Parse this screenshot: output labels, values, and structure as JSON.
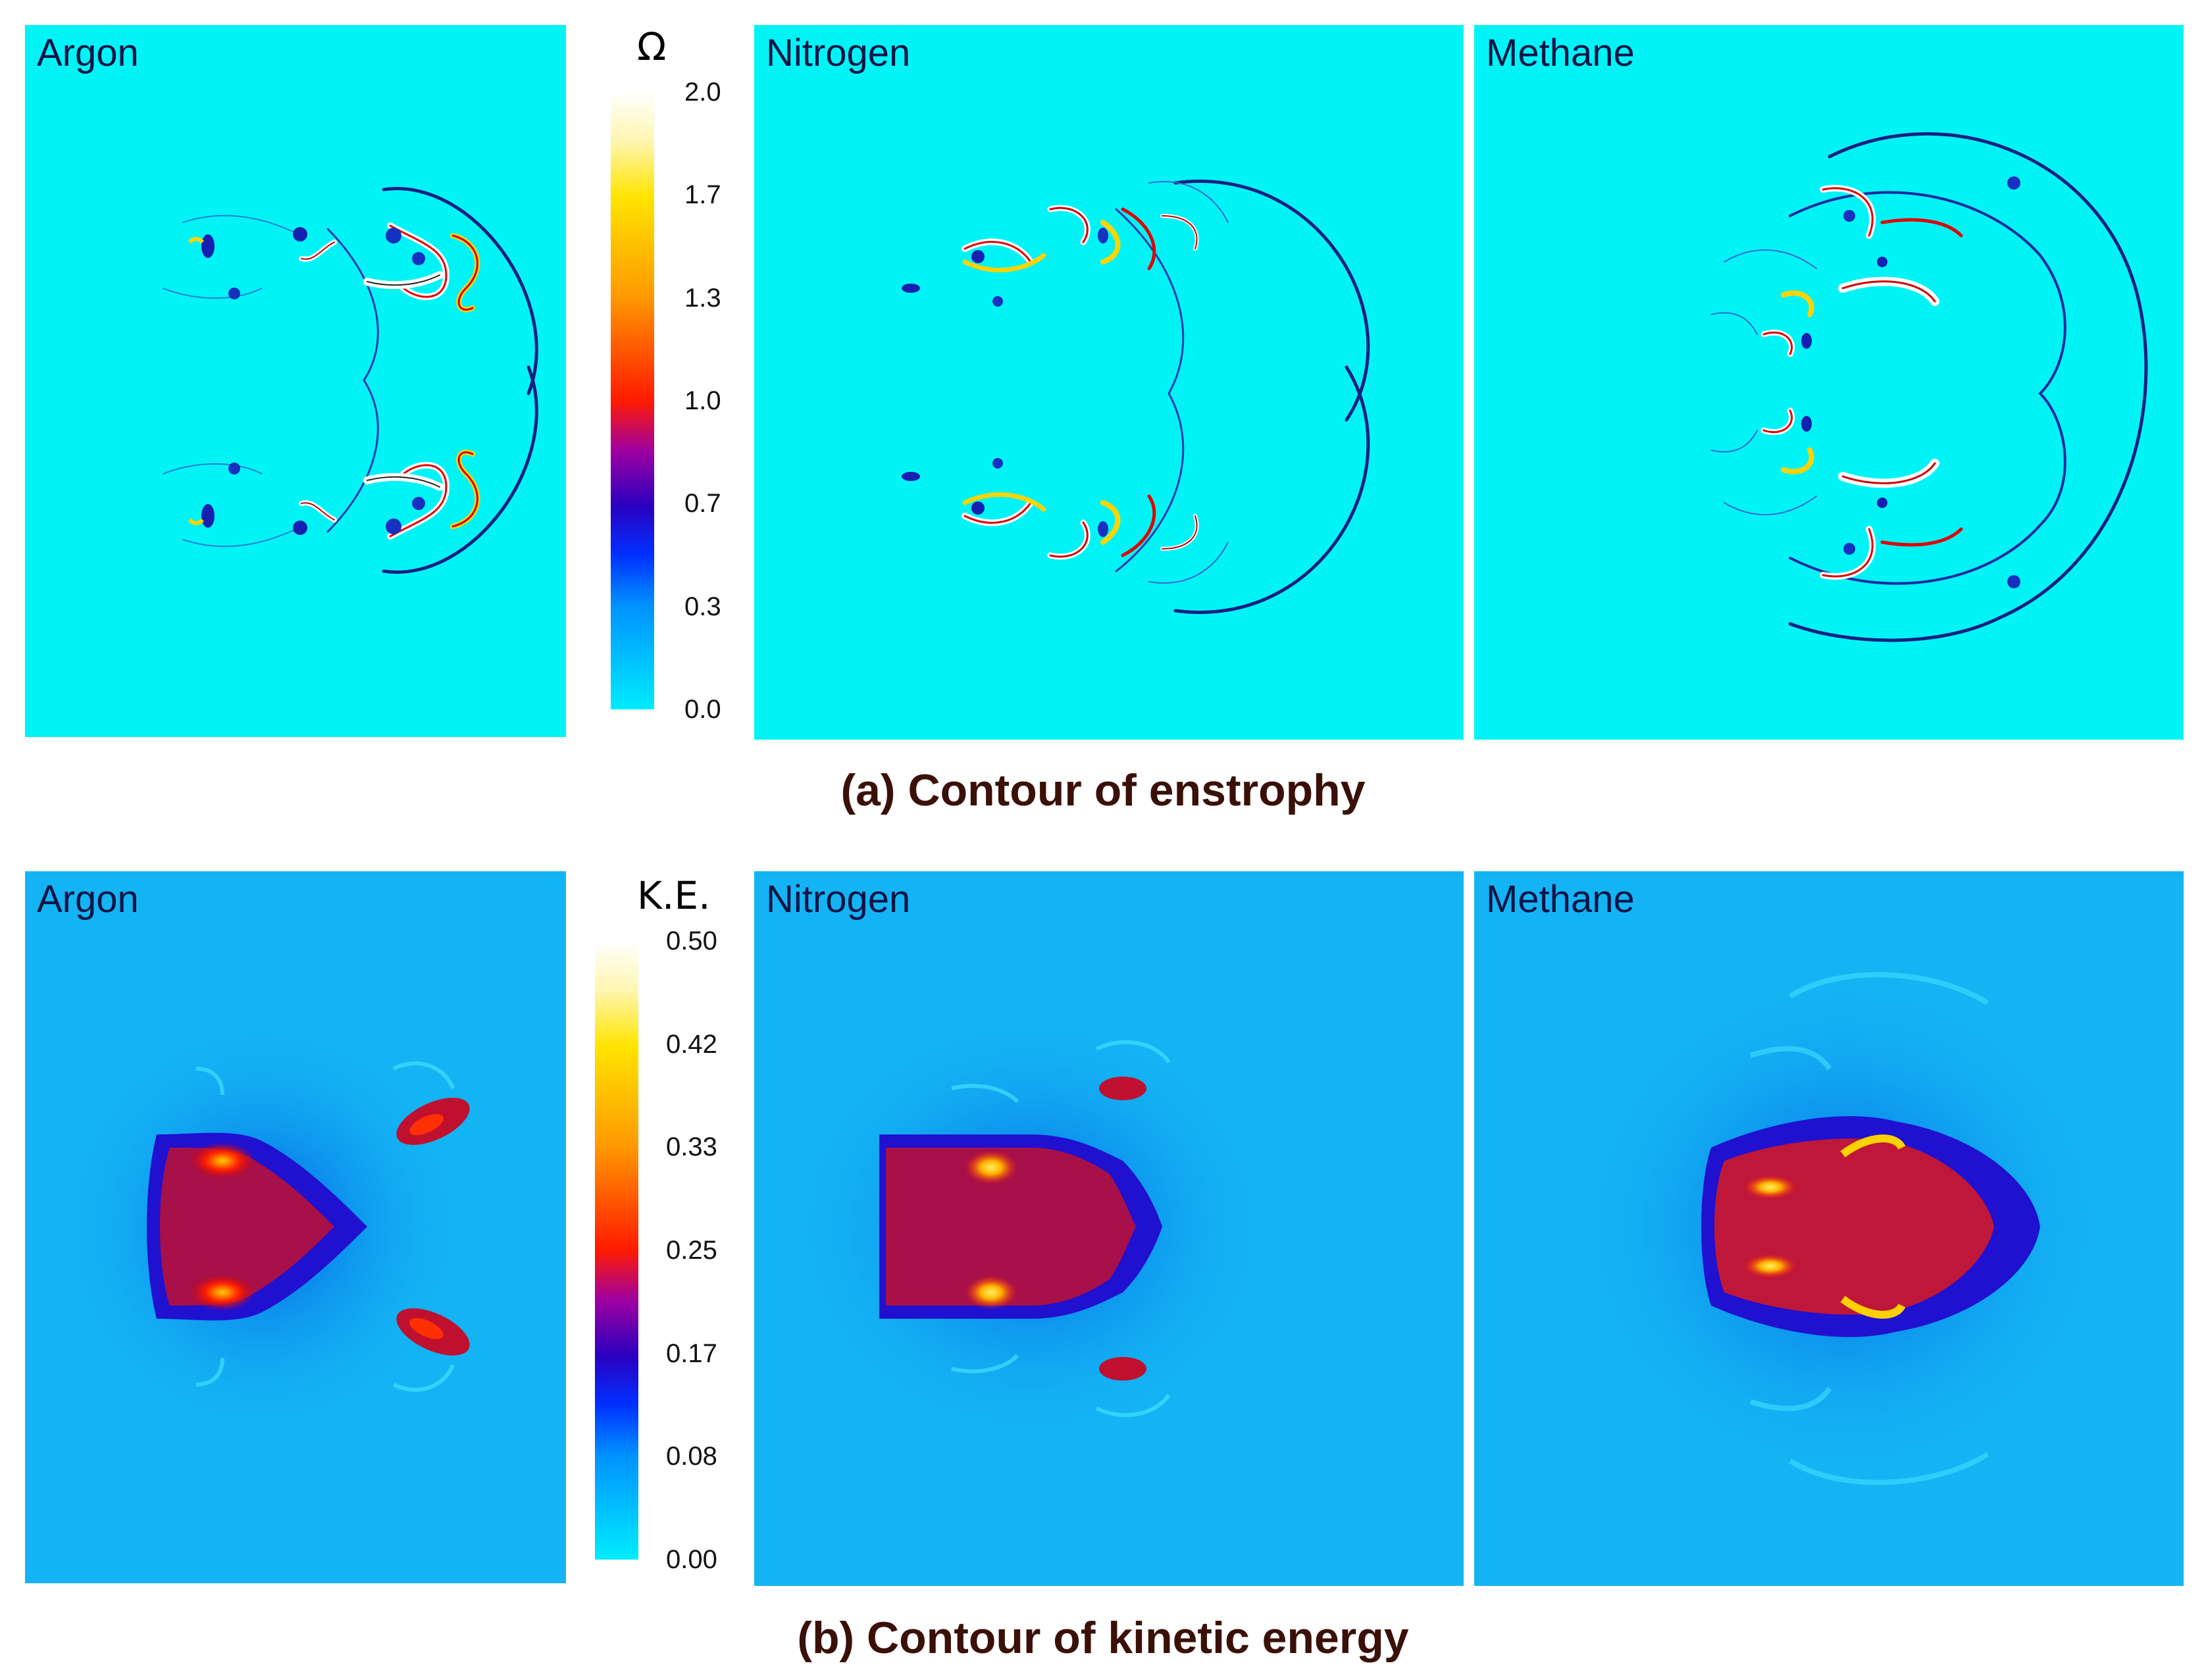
{
  "figure": {
    "row_a": {
      "caption": "(a) Contour of enstrophy",
      "colorbar": {
        "title": "Ω",
        "ticks": [
          "2.0",
          "1.7",
          "1.3",
          "1.0",
          "0.7",
          "0.3",
          "0.0"
        ]
      },
      "panels": [
        {
          "id": "a-argon",
          "label": "Argon"
        },
        {
          "id": "a-nitrogen",
          "label": "Nitrogen"
        },
        {
          "id": "a-methane",
          "label": "Methane"
        }
      ]
    },
    "row_b": {
      "caption": "(b) Contour of kinetic energy",
      "colorbar": {
        "title": "K.E.",
        "ticks": [
          "0.50",
          "0.42",
          "0.33",
          "0.25",
          "0.17",
          "0.08",
          "0.00"
        ]
      },
      "panels": [
        {
          "id": "b-argon",
          "label": "Argon"
        },
        {
          "id": "b-nitrogen",
          "label": "Nitrogen"
        },
        {
          "id": "b-methane",
          "label": "Methane"
        }
      ]
    }
  },
  "colors": {
    "enstrophy_background": "#00f4f6",
    "kinetic_background": "#14b4f4",
    "caption_text": "#3a1008",
    "panel_label_text": "#0a1445"
  }
}
